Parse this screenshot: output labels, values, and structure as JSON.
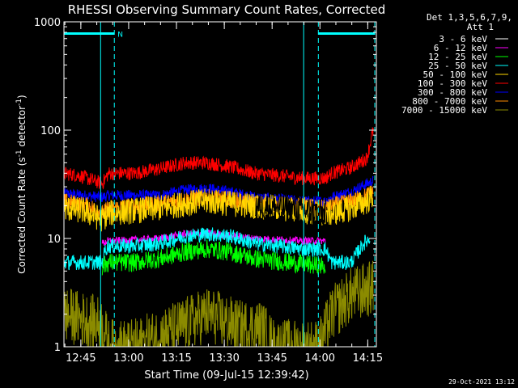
{
  "chart_data": {
    "type": "line",
    "title": "RHESSI Observing Summary Count Rates, Corrected",
    "xlabel": "Start Time (09-Jul-15 12:39:42)",
    "ylabel_parts": [
      "Corrected Count Rate (s",
      "-1",
      " detector",
      "-1",
      ")"
    ],
    "yscale": "log",
    "ylim": [
      1,
      1000
    ],
    "xlim_minutes": [
      0,
      98
    ],
    "x_tick_labels": [
      "12:45",
      "13:00",
      "13:15",
      "13:30",
      "13:45",
      "14:00",
      "14:15"
    ],
    "y_tick_labels": [
      "1",
      "10",
      "100",
      "1000"
    ],
    "grid": false,
    "legend_position": "right",
    "legend_header": [
      "Det 1,3,5,6,7,9,",
      "Att 1"
    ],
    "series": [
      {
        "name": "3 - 6 keV",
        "color": "#ffffff",
        "trace_color": "#000000"
      },
      {
        "name": "6 - 12 keV",
        "color": "#ff00ff"
      },
      {
        "name": "12 - 25 keV",
        "color": "#00ff00"
      },
      {
        "name": "25 - 50 keV",
        "color": "#00ffff"
      },
      {
        "name": "50 - 100 keV",
        "color": "#ffd700"
      },
      {
        "name": "100 - 300 keV",
        "color": "#ff0000"
      },
      {
        "name": "300 - 800 keV",
        "color": "#0000ff"
      },
      {
        "name": "800 - 7000 keV",
        "color": "#ff8c00"
      },
      {
        "name": "7000 - 15000 keV",
        "color": "#8b8b00"
      }
    ],
    "profiles": [
      {
        "series": 6,
        "noise": 0.12,
        "points": [
          [
            0,
            26
          ],
          [
            12,
            24
          ],
          [
            14,
            25
          ],
          [
            20,
            25
          ],
          [
            30,
            25
          ],
          [
            38,
            28
          ],
          [
            45,
            29
          ],
          [
            52,
            27
          ],
          [
            60,
            24
          ],
          [
            75,
            22
          ],
          [
            82,
            22
          ],
          [
            84,
            24
          ],
          [
            90,
            27
          ],
          [
            95,
            32
          ],
          [
            97,
            34
          ]
        ]
      },
      {
        "series": 5,
        "noise": 0.15,
        "points": [
          [
            0,
            40
          ],
          [
            5,
            38
          ],
          [
            12,
            32
          ],
          [
            14,
            40
          ],
          [
            22,
            40
          ],
          [
            30,
            44
          ],
          [
            38,
            50
          ],
          [
            45,
            50
          ],
          [
            52,
            46
          ],
          [
            60,
            40
          ],
          [
            75,
            36
          ],
          [
            82,
            36
          ],
          [
            84,
            40
          ],
          [
            90,
            45
          ],
          [
            95,
            55
          ],
          [
            97,
            100
          ]
        ]
      },
      {
        "series": 7,
        "noise": 0.18,
        "points": [
          [
            0,
            22
          ],
          [
            8,
            20
          ],
          [
            12,
            17
          ],
          [
            14,
            19
          ],
          [
            22,
            20
          ],
          [
            30,
            21
          ],
          [
            38,
            23
          ],
          [
            45,
            24
          ],
          [
            52,
            23
          ],
          [
            60,
            21
          ],
          [
            75,
            20
          ],
          [
            82,
            19
          ],
          [
            84,
            20
          ],
          [
            90,
            22
          ],
          [
            95,
            25
          ],
          [
            97,
            27
          ]
        ]
      },
      {
        "series": 4,
        "noise": 0.28,
        "points": [
          [
            0,
            19
          ],
          [
            6,
            18
          ],
          [
            12,
            15
          ],
          [
            14,
            17
          ],
          [
            22,
            18
          ],
          [
            30,
            19
          ],
          [
            38,
            21
          ],
          [
            45,
            22
          ],
          [
            52,
            21
          ],
          [
            60,
            20
          ],
          [
            75,
            18
          ],
          [
            82,
            17
          ],
          [
            84,
            17
          ],
          [
            90,
            19
          ],
          [
            95,
            22
          ],
          [
            97,
            25
          ]
        ]
      },
      {
        "series": 1,
        "noise": 0.08,
        "points": [
          [
            12,
            9
          ],
          [
            14,
            9.5
          ],
          [
            20,
            9.6
          ],
          [
            30,
            10
          ],
          [
            38,
            11
          ],
          [
            45,
            11.2
          ],
          [
            52,
            10.6
          ],
          [
            60,
            10
          ],
          [
            75,
            9.5
          ],
          [
            82,
            9.5
          ]
        ]
      },
      {
        "series": 3,
        "noise": 0.16,
        "points": [
          [
            0,
            6
          ],
          [
            12,
            6
          ],
          [
            13,
            8
          ],
          [
            14,
            8.5
          ],
          [
            22,
            8.5
          ],
          [
            30,
            9
          ],
          [
            38,
            10.5
          ],
          [
            45,
            11
          ],
          [
            52,
            10.5
          ],
          [
            60,
            9
          ],
          [
            75,
            8
          ],
          [
            82,
            8
          ],
          [
            84,
            6
          ],
          [
            90,
            6
          ],
          [
            94,
            9
          ],
          [
            96,
            10
          ]
        ]
      },
      {
        "series": 2,
        "noise": 0.2,
        "points": [
          [
            12,
            5.5
          ],
          [
            14,
            6
          ],
          [
            22,
            6
          ],
          [
            30,
            6.5
          ],
          [
            38,
            7.5
          ],
          [
            45,
            8
          ],
          [
            52,
            7.5
          ],
          [
            60,
            6.5
          ],
          [
            75,
            5.8
          ],
          [
            82,
            5.5
          ]
        ]
      },
      {
        "series": 8,
        "noise": 0.6,
        "points": [
          [
            0,
            2
          ],
          [
            12,
            1.6
          ],
          [
            14,
            1
          ],
          [
            22,
            1
          ],
          [
            36,
            1.5
          ],
          [
            45,
            2
          ],
          [
            55,
            1.5
          ],
          [
            62,
            1.5
          ],
          [
            66,
            1
          ],
          [
            80,
            1
          ],
          [
            84,
            2
          ],
          [
            90,
            3
          ],
          [
            97,
            3.5
          ]
        ]
      },
      {
        "series": 0,
        "noise": 0.3,
        "points": [
          [
            60,
            20
          ],
          [
            70,
            19
          ],
          [
            82,
            17
          ]
        ]
      }
    ],
    "attenuator_mark_minutes": [
      11.5,
      15.8,
      75.2,
      79.8,
      97.5
    ],
    "flag_label": "N",
    "footer_date": "29-Oct-2021 13:12"
  }
}
